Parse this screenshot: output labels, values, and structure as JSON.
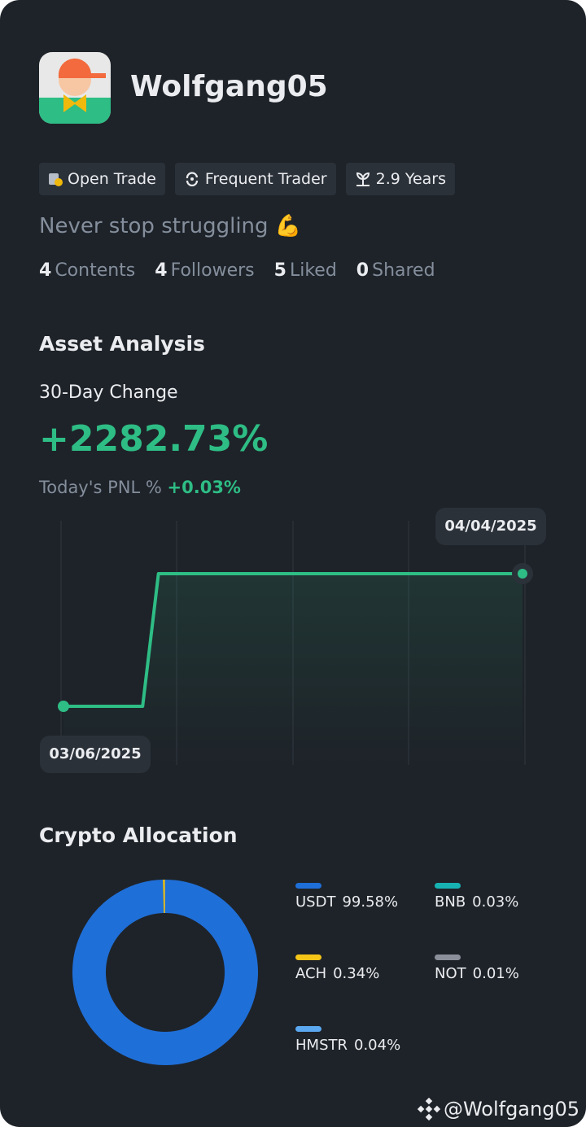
{
  "profile": {
    "name": "Wolfgang05",
    "badges": [
      "Open Trade",
      "Frequent Trader",
      "2.9 Years"
    ],
    "bio": "Never stop struggling 💪",
    "stats": [
      {
        "count": 4,
        "label": "Contents"
      },
      {
        "count": 4,
        "label": "Followers"
      },
      {
        "count": 5,
        "label": "Liked"
      },
      {
        "count": 0,
        "label": "Shared"
      }
    ]
  },
  "asset": {
    "title": "Asset Analysis",
    "change_label": "30-Day Change",
    "change": "+2282.73%",
    "pnl_label": "Today's PNL %",
    "pnl": "+0.03%"
  },
  "chart_data": [
    {
      "type": "line",
      "categories": [
        "03/06/2025",
        null,
        null,
        null,
        null,
        null,
        null,
        null,
        null,
        null,
        null,
        null,
        null,
        null,
        null,
        null,
        null,
        null,
        null,
        null,
        null,
        null,
        null,
        null,
        null,
        null,
        null,
        null,
        null,
        "04/04/2025"
      ],
      "series": [
        {
          "color": "#2ebd85",
          "values": [
            0,
            0,
            0,
            0,
            0,
            0,
            2282.73,
            2282.73,
            2282.73,
            2282.73,
            2282.73,
            2282.73,
            2282.73,
            2282.73,
            2282.73,
            2282.73,
            2282.73,
            2282.73,
            2282.73,
            2282.73,
            2282.73,
            2282.73,
            2282.73,
            2282.73,
            2282.73,
            2282.73,
            2282.73,
            2282.73,
            2282.73,
            2282.73
          ]
        }
      ],
      "grid": true
    },
    {
      "type": "pie",
      "title": "Crypto Allocation",
      "categories": [
        "USDT",
        "BNB",
        "ACH",
        "NOT",
        "HMSTR"
      ],
      "values": [
        99.58,
        0.03,
        0.34,
        0.01,
        0.04
      ],
      "value_labels": [
        "99.58%",
        "0.03%",
        "0.34%",
        "0.01%",
        "0.04%"
      ],
      "colors": [
        "#1f6fd8",
        "#17b3b3",
        "#f5c518",
        "#8a8f99",
        "#5ba8f0"
      ]
    }
  ],
  "watermark": "@Wolfgang05"
}
